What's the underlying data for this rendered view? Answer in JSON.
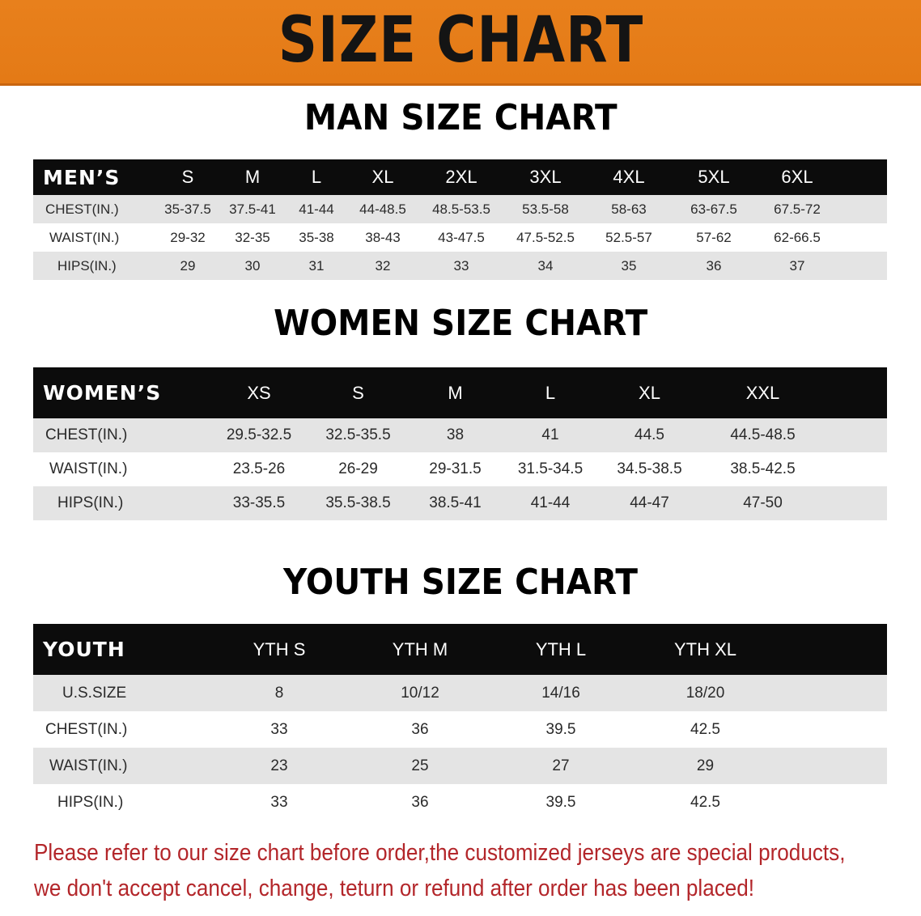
{
  "banner_title": "SIZE CHART",
  "colors": {
    "banner": "#e47a16",
    "header_row": "#0c0c0c",
    "shaded_row": "#e4e4e4",
    "notice_text": "#b3262a"
  },
  "men": {
    "title": "MAN SIZE CHART",
    "header": [
      "MEN’S",
      "S",
      "M",
      "L",
      "XL",
      "2XL",
      "3XL",
      "4XL",
      "5XL",
      "6XL"
    ],
    "rows": [
      [
        "CHEST(IN.)",
        "35-37.5",
        "37.5-41",
        "41-44",
        "44-48.5",
        "48.5-53.5",
        "53.5-58",
        "58-63",
        "63-67.5",
        "67.5-72"
      ],
      [
        "WAIST(IN.)",
        "29-32",
        "32-35",
        "35-38",
        "38-43",
        "43-47.5",
        "47.5-52.5",
        "52.5-57",
        "57-62",
        "62-66.5"
      ],
      [
        "HIPS(IN.)",
        "29",
        "30",
        "31",
        "32",
        "33",
        "34",
        "35",
        "36",
        "37"
      ]
    ]
  },
  "women": {
    "title": "WOMEN SIZE CHART",
    "header": [
      "WOMEN’S",
      "XS",
      "S",
      "M",
      "L",
      "XL",
      "XXL"
    ],
    "rows": [
      [
        "CHEST(IN.)",
        "29.5-32.5",
        "32.5-35.5",
        "38",
        "41",
        "44.5",
        "44.5-48.5"
      ],
      [
        "WAIST(IN.)",
        "23.5-26",
        "26-29",
        "29-31.5",
        "31.5-34.5",
        "34.5-38.5",
        "38.5-42.5"
      ],
      [
        "HIPS(IN.)",
        "33-35.5",
        "35.5-38.5",
        "38.5-41",
        "41-44",
        "44-47",
        "47-50"
      ]
    ]
  },
  "youth": {
    "title": "YOUTH SIZE CHART",
    "header": [
      "YOUTH",
      "YTH S",
      "YTH M",
      "YTH L",
      "YTH XL"
    ],
    "rows": [
      [
        "U.S.SIZE",
        "8",
        "10/12",
        "14/16",
        "18/20"
      ],
      [
        "CHEST(IN.)",
        "33",
        "36",
        "39.5",
        "42.5"
      ],
      [
        "WAIST(IN.)",
        "23",
        "25",
        "27",
        "29"
      ],
      [
        "HIPS(IN.)",
        "33",
        "36",
        "39.5",
        "42.5"
      ]
    ]
  },
  "notice": {
    "line1": "Please refer to our size chart before order,the customized jerseys are special products,",
    "line2": "we don't accept cancel, change, teturn or refund after order has been placed!"
  }
}
